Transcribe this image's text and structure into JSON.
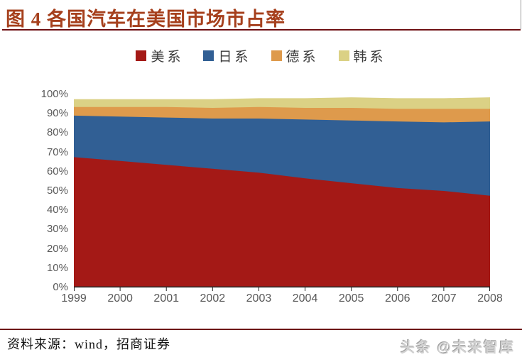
{
  "header": {
    "title": "图 4 各国汽车在美国市场市占率"
  },
  "footer": {
    "source": "资料来源：wind，招商证券",
    "watermark": "头条 @未来智库"
  },
  "colors": {
    "title_accent": "#A6401D",
    "rule": "#6E1013",
    "axis_text": "#595959",
    "axis_line": "#262626"
  },
  "chart_data": {
    "type": "area",
    "stacked": true,
    "title": "各国汽车在美国市场市占率",
    "xlabel": "",
    "ylabel": "",
    "grid": false,
    "legend_position": "top-center",
    "ylim": [
      0,
      100
    ],
    "y_ticks": [
      "0%",
      "10%",
      "20%",
      "30%",
      "40%",
      "50%",
      "60%",
      "70%",
      "80%",
      "90%",
      "100%"
    ],
    "categories": [
      "1999",
      "2000",
      "2001",
      "2002",
      "2003",
      "2004",
      "2005",
      "2006",
      "2007",
      "2008"
    ],
    "series": [
      {
        "name": "美系",
        "color": "#A41916",
        "values": [
          67.5,
          65.5,
          63.5,
          61.5,
          59.5,
          56.5,
          54,
          51.5,
          50,
          47.5
        ]
      },
      {
        "name": "日系",
        "color": "#315F94",
        "values": [
          21.5,
          23,
          24.5,
          26,
          28,
          30.5,
          32.5,
          34.5,
          35.5,
          38.5
        ]
      },
      {
        "name": "德系",
        "color": "#DE9A4C",
        "values": [
          4.5,
          5,
          5.5,
          5.5,
          6,
          6,
          6.5,
          6.5,
          7,
          6.5
        ]
      },
      {
        "name": "韩系",
        "color": "#DBD185",
        "values": [
          4,
          4,
          4,
          4.5,
          4.5,
          5,
          5.5,
          5.5,
          5.5,
          6
        ]
      }
    ]
  }
}
